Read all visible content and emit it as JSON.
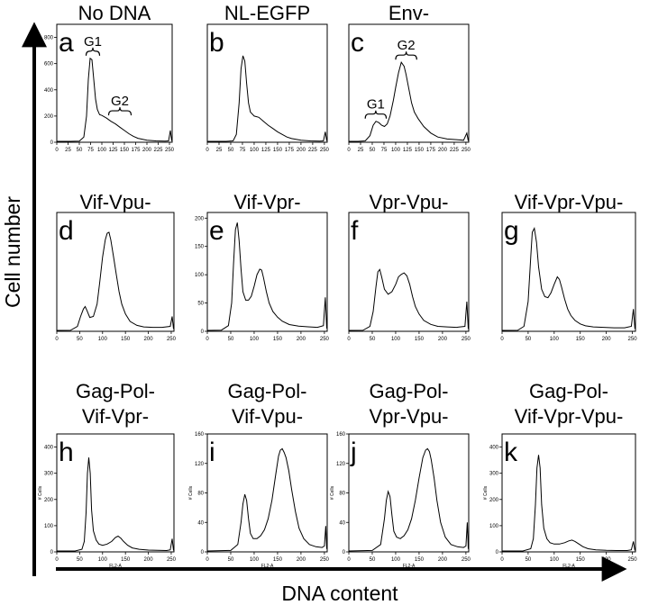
{
  "figure": {
    "y_axis_label": "Cell number",
    "x_axis_label": "DNA content"
  },
  "chart_data": [
    {
      "id": "a",
      "type": "line",
      "title": "No DNA",
      "xlim": [
        0,
        256
      ],
      "ylim": [
        0,
        900
      ],
      "x_ticks": [
        0,
        25,
        50,
        75,
        100,
        125,
        150,
        175,
        200,
        225,
        250
      ],
      "y_ticks": [
        0,
        200,
        400,
        600,
        800
      ],
      "gates": [
        {
          "label": "G1",
          "range": [
            65,
            95
          ]
        },
        {
          "label": "G2",
          "range": [
            115,
            165
          ]
        }
      ],
      "x": [
        0,
        30,
        50,
        60,
        66,
        70,
        74,
        78,
        82,
        86,
        90,
        95,
        100,
        110,
        120,
        130,
        140,
        150,
        160,
        170,
        180,
        200,
        220,
        240,
        248,
        252,
        255
      ],
      "y": [
        0,
        2,
        8,
        40,
        200,
        480,
        640,
        630,
        480,
        330,
        250,
        210,
        205,
        185,
        160,
        140,
        115,
        90,
        65,
        45,
        30,
        15,
        10,
        8,
        10,
        90,
        10
      ]
    },
    {
      "id": "b",
      "type": "line",
      "title": "NL-EGFP",
      "xlim": [
        0,
        256
      ],
      "ylim": [
        0,
        900
      ],
      "x_ticks": [
        0,
        25,
        50,
        75,
        100,
        125,
        150,
        175,
        200,
        225,
        250
      ],
      "y_ticks": [],
      "x": [
        0,
        40,
        55,
        62,
        68,
        72,
        76,
        80,
        84,
        88,
        92,
        100,
        110,
        120,
        130,
        140,
        150,
        160,
        170,
        180,
        200,
        220,
        240,
        248,
        252,
        255
      ],
      "y": [
        0,
        2,
        10,
        60,
        300,
        560,
        660,
        620,
        450,
        300,
        230,
        200,
        190,
        160,
        130,
        105,
        80,
        60,
        40,
        28,
        15,
        10,
        8,
        10,
        80,
        10
      ]
    },
    {
      "id": "c",
      "type": "line",
      "title": "Env-",
      "xlim": [
        0,
        256
      ],
      "ylim": [
        0,
        900
      ],
      "x_ticks": [
        0,
        25,
        50,
        75,
        100,
        125,
        150,
        175,
        200,
        225,
        250
      ],
      "y_ticks": [],
      "gates": [
        {
          "label": "G1",
          "range": [
            35,
            80
          ]
        },
        {
          "label": "G2",
          "range": [
            100,
            145
          ]
        }
      ],
      "x": [
        0,
        20,
        35,
        45,
        52,
        58,
        64,
        70,
        76,
        82,
        88,
        95,
        100,
        106,
        112,
        118,
        122,
        128,
        134,
        140,
        148,
        160,
        175,
        190,
        210,
        230,
        245,
        252,
        255
      ],
      "y": [
        0,
        3,
        10,
        50,
        130,
        160,
        150,
        130,
        120,
        140,
        200,
        320,
        420,
        530,
        610,
        580,
        520,
        410,
        300,
        230,
        180,
        120,
        70,
        40,
        25,
        20,
        15,
        70,
        10
      ]
    },
    {
      "id": "d",
      "type": "line",
      "title": "Vif-Vpu-",
      "xlim": [
        0,
        256
      ],
      "ylim": [
        0,
        240
      ],
      "x_ticks": [
        0,
        50,
        100,
        150,
        200,
        250
      ],
      "y_ticks": [],
      "x": [
        0,
        30,
        45,
        52,
        58,
        62,
        66,
        72,
        80,
        88,
        94,
        100,
        106,
        110,
        114,
        118,
        124,
        130,
        136,
        142,
        150,
        160,
        175,
        190,
        210,
        230,
        248,
        252,
        255
      ],
      "y": [
        0,
        2,
        10,
        30,
        45,
        50,
        42,
        28,
        30,
        55,
        100,
        150,
        185,
        198,
        200,
        185,
        150,
        115,
        80,
        55,
        35,
        20,
        12,
        9,
        8,
        8,
        10,
        30,
        5
      ]
    },
    {
      "id": "e",
      "type": "line",
      "title": "Vif-Vpr-",
      "xlim": [
        0,
        256
      ],
      "ylim": [
        0,
        210
      ],
      "x_ticks": [
        0,
        50,
        100,
        150,
        200,
        250
      ],
      "y_ticks": [
        0,
        50,
        100,
        150,
        200
      ],
      "x": [
        0,
        30,
        45,
        52,
        56,
        60,
        64,
        68,
        72,
        76,
        82,
        88,
        94,
        100,
        106,
        112,
        116,
        120,
        126,
        132,
        140,
        150,
        160,
        175,
        195,
        215,
        235,
        248,
        252,
        255
      ],
      "y": [
        0,
        2,
        10,
        50,
        120,
        180,
        192,
        160,
        110,
        70,
        55,
        55,
        62,
        80,
        100,
        110,
        108,
        95,
        70,
        50,
        35,
        25,
        18,
        12,
        9,
        8,
        7,
        10,
        60,
        5
      ]
    },
    {
      "id": "f",
      "type": "line",
      "title": "Vpr-Vpu-",
      "xlim": [
        0,
        256
      ],
      "ylim": [
        0,
        240
      ],
      "x_ticks": [
        0,
        50,
        100,
        150,
        200,
        250
      ],
      "y_ticks": [],
      "x": [
        0,
        30,
        45,
        52,
        58,
        62,
        66,
        70,
        76,
        84,
        92,
        100,
        106,
        112,
        118,
        124,
        130,
        136,
        142,
        150,
        160,
        175,
        190,
        210,
        230,
        248,
        252,
        255
      ],
      "y": [
        0,
        2,
        10,
        40,
        90,
        120,
        125,
        110,
        85,
        75,
        80,
        95,
        110,
        115,
        118,
        112,
        95,
        70,
        50,
        35,
        22,
        14,
        10,
        9,
        8,
        10,
        60,
        5
      ]
    },
    {
      "id": "g",
      "type": "line",
      "title": "Vif-Vpr-Vpu-",
      "xlim": [
        0,
        256
      ],
      "ylim": [
        0,
        240
      ],
      "x_ticks": [
        0,
        50,
        100,
        150,
        200,
        250
      ],
      "y_ticks": [],
      "x": [
        0,
        30,
        42,
        50,
        55,
        58,
        62,
        66,
        70,
        76,
        82,
        88,
        94,
        100,
        106,
        110,
        114,
        120,
        126,
        132,
        140,
        150,
        160,
        175,
        195,
        215,
        235,
        248,
        252,
        255
      ],
      "y": [
        0,
        2,
        10,
        60,
        150,
        200,
        208,
        180,
        130,
        85,
        70,
        68,
        78,
        95,
        110,
        105,
        90,
        65,
        45,
        32,
        22,
        15,
        11,
        9,
        8,
        7,
        7,
        10,
        45,
        5
      ]
    },
    {
      "id": "h",
      "type": "line",
      "title": "Gag-Pol-",
      "subtitle": "Vif-Vpr-",
      "xlim": [
        0,
        256
      ],
      "ylim": [
        0,
        450
      ],
      "x_ticks": [
        0,
        50,
        100,
        150,
        200,
        250
      ],
      "y_ticks": [
        0,
        100,
        200,
        300,
        400
      ],
      "ylabel": "# Cells",
      "xlabel": "FL2-A",
      "x": [
        0,
        40,
        55,
        60,
        64,
        67,
        70,
        73,
        76,
        80,
        86,
        92,
        100,
        110,
        120,
        128,
        134,
        140,
        146,
        155,
        165,
        180,
        200,
        220,
        240,
        248,
        252,
        255
      ],
      "y": [
        0,
        2,
        10,
        40,
        150,
        300,
        360,
        300,
        160,
        80,
        45,
        30,
        25,
        30,
        40,
        55,
        60,
        52,
        40,
        25,
        15,
        10,
        7,
        6,
        5,
        8,
        50,
        5
      ]
    },
    {
      "id": "i",
      "type": "line",
      "title": "Gag-Pol-",
      "subtitle": "Vif-Vpu-",
      "xlim": [
        0,
        256
      ],
      "ylim": [
        0,
        160
      ],
      "x_ticks": [
        0,
        50,
        100,
        150,
        200,
        250
      ],
      "y_ticks": [
        0,
        40,
        80,
        120,
        160
      ],
      "ylabel": "# Cells",
      "xlabel": "FL2-A",
      "x": [
        0,
        50,
        65,
        72,
        76,
        80,
        84,
        88,
        92,
        98,
        106,
        114,
        122,
        130,
        138,
        146,
        152,
        156,
        160,
        164,
        168,
        174,
        180,
        188,
        196,
        206,
        218,
        232,
        245,
        250,
        253,
        255
      ],
      "y": [
        0,
        2,
        10,
        40,
        65,
        78,
        70,
        45,
        25,
        18,
        18,
        22,
        30,
        45,
        70,
        105,
        130,
        138,
        140,
        135,
        128,
        110,
        85,
        55,
        32,
        18,
        10,
        7,
        6,
        8,
        35,
        4
      ]
    },
    {
      "id": "j",
      "type": "line",
      "title": "Gag-Pol-",
      "subtitle": "Vpr-Vpu-",
      "xlim": [
        0,
        256
      ],
      "ylim": [
        0,
        160
      ],
      "x_ticks": [
        0,
        50,
        100,
        150,
        200,
        250
      ],
      "y_ticks": [
        0,
        40,
        80,
        120,
        160
      ],
      "ylabel": "# Cells",
      "xlabel": "FL2-A",
      "x": [
        0,
        50,
        68,
        76,
        80,
        84,
        88,
        92,
        96,
        102,
        110,
        118,
        126,
        134,
        142,
        150,
        158,
        164,
        168,
        172,
        176,
        182,
        188,
        196,
        206,
        218,
        232,
        245,
        250,
        253,
        255
      ],
      "y": [
        0,
        2,
        10,
        45,
        70,
        82,
        75,
        50,
        28,
        20,
        18,
        22,
        30,
        45,
        70,
        100,
        128,
        138,
        140,
        136,
        125,
        100,
        70,
        40,
        20,
        10,
        7,
        6,
        8,
        40,
        4
      ]
    },
    {
      "id": "k",
      "type": "line",
      "title": "Gag-Pol-",
      "subtitle": "Vif-Vpr-Vpu-",
      "xlim": [
        0,
        256
      ],
      "ylim": [
        0,
        450
      ],
      "x_ticks": [
        0,
        50,
        100,
        150,
        200,
        250
      ],
      "y_ticks": [
        0,
        100,
        200,
        300,
        400
      ],
      "ylabel": "# Cells",
      "xlabel": "FL2-A",
      "x": [
        0,
        40,
        55,
        60,
        64,
        67,
        70,
        73,
        76,
        80,
        86,
        92,
        100,
        110,
        120,
        128,
        134,
        140,
        146,
        155,
        165,
        180,
        200,
        220,
        240,
        248,
        252,
        255
      ],
      "y": [
        0,
        2,
        12,
        50,
        180,
        320,
        370,
        320,
        180,
        90,
        50,
        35,
        30,
        30,
        35,
        42,
        45,
        40,
        32,
        20,
        12,
        8,
        6,
        5,
        5,
        8,
        40,
        5
      ]
    }
  ]
}
